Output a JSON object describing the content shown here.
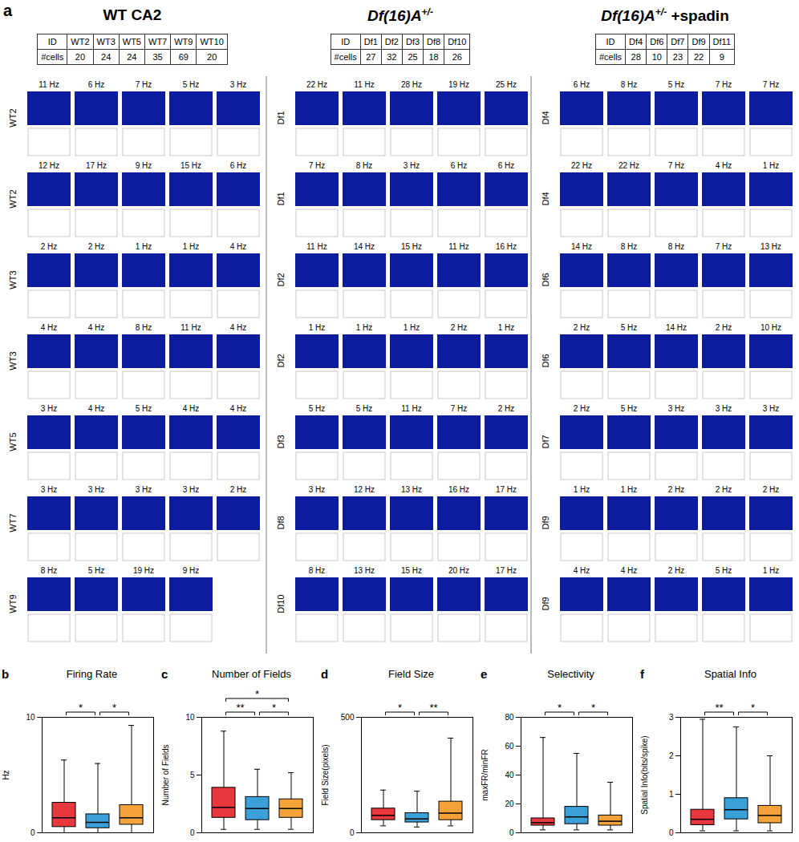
{
  "panel_a": {
    "label": "a",
    "groups": [
      {
        "title": {
          "main": "WT CA2"
        },
        "table": {
          "header": [
            "ID",
            "#cells"
          ],
          "ids": [
            "WT2",
            "WT3",
            "WT5",
            "WT7",
            "WT9",
            "WT10"
          ],
          "cells": [
            20,
            24,
            24,
            35,
            69,
            20
          ]
        },
        "rows": [
          {
            "id": "WT2",
            "rates": [
              "11 Hz",
              "6 Hz",
              "7 Hz",
              "5 Hz",
              "3 Hz"
            ]
          },
          {
            "id": "WT2",
            "rates": [
              "12 Hz",
              "17 Hz",
              "9 Hz",
              "15 Hz",
              "6 Hz"
            ]
          },
          {
            "id": "WT3",
            "rates": [
              "2 Hz",
              "2 Hz",
              "1 Hz",
              "1 Hz",
              "4 Hz"
            ]
          },
          {
            "id": "WT3",
            "rates": [
              "4 Hz",
              "4 Hz",
              "8 Hz",
              "11 Hz",
              "4 Hz"
            ]
          },
          {
            "id": "WT5",
            "rates": [
              "3 Hz",
              "4 Hz",
              "5 Hz",
              "4 Hz",
              "4 Hz"
            ]
          },
          {
            "id": "WT7",
            "rates": [
              "3 Hz",
              "3 Hz",
              "3 Hz",
              "3 Hz",
              "2 Hz"
            ]
          },
          {
            "id": "WT9",
            "rates": [
              "8 Hz",
              "5 Hz",
              "19 Hz",
              "9 Hz"
            ]
          }
        ]
      },
      {
        "title": {
          "main": "Df(16)A",
          "sup": "+/-"
        },
        "table": {
          "header": [
            "ID",
            "#cells"
          ],
          "ids": [
            "Df1",
            "Df2",
            "Df3",
            "Df8",
            "Df10"
          ],
          "cells": [
            27,
            32,
            25,
            18,
            26
          ]
        },
        "rows": [
          {
            "id": "Df1",
            "rates": [
              "22 Hz",
              "11 Hz",
              "28 Hz",
              "19 Hz",
              "25 Hz"
            ]
          },
          {
            "id": "Df1",
            "rates": [
              "7 Hz",
              "8 Hz",
              "3 Hz",
              "6 Hz",
              "6 Hz"
            ]
          },
          {
            "id": "Df2",
            "rates": [
              "11 Hz",
              "14 Hz",
              "15 Hz",
              "11 Hz",
              "16 Hz"
            ]
          },
          {
            "id": "Df2",
            "rates": [
              "1 Hz",
              "1 Hz",
              "1 Hz",
              "2 Hz",
              "1 Hz"
            ]
          },
          {
            "id": "Df3",
            "rates": [
              "5 Hz",
              "5 Hz",
              "11 Hz",
              "7 Hz",
              "2 Hz"
            ]
          },
          {
            "id": "Df8",
            "rates": [
              "3 Hz",
              "12 Hz",
              "13 Hz",
              "16 Hz",
              "17 Hz"
            ]
          },
          {
            "id": "Df10",
            "rates": [
              "8 Hz",
              "13 Hz",
              "15 Hz",
              "20 Hz",
              "17 Hz"
            ]
          }
        ]
      },
      {
        "title": {
          "main": "Df(16)A",
          "sup": "+/-",
          "suffix": " +spadin"
        },
        "table": {
          "header": [
            "ID",
            "#cells"
          ],
          "ids": [
            "Df4",
            "Df6",
            "Df7",
            "Df9",
            "Df11"
          ],
          "cells": [
            28,
            10,
            23,
            22,
            9
          ]
        },
        "rows": [
          {
            "id": "Df4",
            "rates": [
              "6 Hz",
              "8 Hz",
              "5 Hz",
              "7 Hz",
              "7 Hz"
            ]
          },
          {
            "id": "Df4",
            "rates": [
              "22 Hz",
              "22 Hz",
              "7 Hz",
              "4 Hz",
              "1 Hz"
            ]
          },
          {
            "id": "Df6",
            "rates": [
              "14 Hz",
              "8 Hz",
              "8 Hz",
              "7 Hz",
              "13 Hz"
            ]
          },
          {
            "id": "Df6",
            "rates": [
              "2 Hz",
              "5 Hz",
              "14 Hz",
              "2 Hz",
              "10 Hz"
            ]
          },
          {
            "id": "Df7",
            "rates": [
              "2 Hz",
              "5 Hz",
              "3 Hz",
              "3 Hz",
              "3 Hz"
            ]
          },
          {
            "id": "Df9",
            "rates": [
              "1 Hz",
              "1 Hz",
              "2 Hz",
              "2 Hz",
              "2 Hz"
            ]
          },
          {
            "id": "Df9",
            "rates": [
              "4 Hz",
              "4 Hz",
              "2 Hz",
              "5 Hz",
              "1 Hz"
            ]
          }
        ]
      }
    ]
  },
  "chart_data": [
    {
      "type": "box",
      "panel": "b",
      "title": "Firing Rate",
      "ylabel": "Hz",
      "categories": [
        null,
        null,
        null
      ],
      "colors": [
        "#e8373d",
        "#3b9fd8",
        "#f5a23a"
      ],
      "boxes": [
        {
          "min": 0,
          "q1": 0.5,
          "median": 1.3,
          "q3": 2.6,
          "max": 6.3
        },
        {
          "min": 0,
          "q1": 0.4,
          "median": 0.9,
          "q3": 1.6,
          "max": 6.0
        },
        {
          "min": 0,
          "q1": 0.7,
          "median": 1.3,
          "q3": 2.4,
          "max": 9.3
        }
      ],
      "ylim": [
        0,
        10
      ],
      "yticks": [
        0,
        10
      ],
      "tick_labels": "y",
      "significance": [
        {
          "pair": [
            0,
            1
          ],
          "label": "*"
        },
        {
          "pair": [
            1,
            2
          ],
          "label": "*"
        }
      ]
    },
    {
      "type": "box",
      "panel": "c",
      "title": "Number of Fields",
      "ylabel": "Number of Fields",
      "categories": [
        null,
        null,
        null
      ],
      "colors": [
        "#e8373d",
        "#3b9fd8",
        "#f5a23a"
      ],
      "boxes": [
        {
          "min": 0.3,
          "q1": 1.3,
          "median": 2.2,
          "q3": 3.9,
          "max": 8.8
        },
        {
          "min": 0.3,
          "q1": 1.1,
          "median": 2.1,
          "q3": 3.1,
          "max": 5.5
        },
        {
          "min": 0.3,
          "q1": 1.3,
          "median": 2.1,
          "q3": 2.9,
          "max": 5.2
        }
      ],
      "ylim": [
        0,
        10
      ],
      "yticks": [
        0,
        5,
        10
      ],
      "tick_labels": "y",
      "significance": [
        {
          "pair": [
            0,
            1
          ],
          "label": "**"
        },
        {
          "pair": [
            0,
            2
          ],
          "label": "*"
        },
        {
          "pair": [
            1,
            2
          ],
          "label": "*"
        }
      ]
    },
    {
      "type": "box",
      "panel": "d",
      "title": "Field Size",
      "ylabel": "Field Size(pixels)",
      "categories": [
        null,
        null,
        null
      ],
      "colors": [
        "#e8373d",
        "#3b9fd8",
        "#f5a23a"
      ],
      "boxes": [
        {
          "min": 30,
          "q1": 55,
          "median": 75,
          "q3": 105,
          "max": 185
        },
        {
          "min": 25,
          "q1": 45,
          "median": 60,
          "q3": 85,
          "max": 180
        },
        {
          "min": 30,
          "q1": 55,
          "median": 85,
          "q3": 135,
          "max": 410
        }
      ],
      "ylim": [
        0,
        500
      ],
      "yticks": [
        0,
        500
      ],
      "tick_labels": "y",
      "significance": [
        {
          "pair": [
            0,
            1
          ],
          "label": "*"
        },
        {
          "pair": [
            1,
            2
          ],
          "label": "**"
        }
      ]
    },
    {
      "type": "box",
      "panel": "e",
      "title": "Selectivity",
      "ylabel": "maxFR/minFR",
      "categories": [
        null,
        null,
        null
      ],
      "colors": [
        "#e8373d",
        "#3b9fd8",
        "#f5a23a"
      ],
      "boxes": [
        {
          "min": 2,
          "q1": 5,
          "median": 7,
          "q3": 10,
          "max": 66
        },
        {
          "min": 2,
          "q1": 6,
          "median": 11,
          "q3": 18,
          "max": 55
        },
        {
          "min": 2,
          "q1": 5,
          "median": 8,
          "q3": 12,
          "max": 35
        }
      ],
      "ylim": [
        0,
        80
      ],
      "yticks": [
        0,
        20,
        40,
        60,
        80
      ],
      "tick_labels": "y",
      "significance": [
        {
          "pair": [
            0,
            1
          ],
          "label": "*"
        },
        {
          "pair": [
            1,
            2
          ],
          "label": "*"
        }
      ]
    },
    {
      "type": "box",
      "panel": "f",
      "title": "Spatial Info",
      "ylabel": "Spatial Info(bits/spike)",
      "categories": [
        null,
        null,
        null
      ],
      "colors": [
        "#e8373d",
        "#3b9fd8",
        "#f5a23a"
      ],
      "boxes": [
        {
          "min": 0.05,
          "q1": 0.2,
          "median": 0.35,
          "q3": 0.6,
          "max": 2.95
        },
        {
          "min": 0.05,
          "q1": 0.35,
          "median": 0.6,
          "q3": 0.9,
          "max": 2.75
        },
        {
          "min": 0.05,
          "q1": 0.25,
          "median": 0.45,
          "q3": 0.7,
          "max": 2.0
        }
      ],
      "ylim": [
        0,
        3
      ],
      "yticks": [
        0,
        1,
        2,
        3
      ],
      "tick_labels": "y",
      "significance": [
        {
          "pair": [
            0,
            1
          ],
          "label": "**"
        },
        {
          "pair": [
            1,
            2
          ],
          "label": "*"
        }
      ]
    }
  ]
}
